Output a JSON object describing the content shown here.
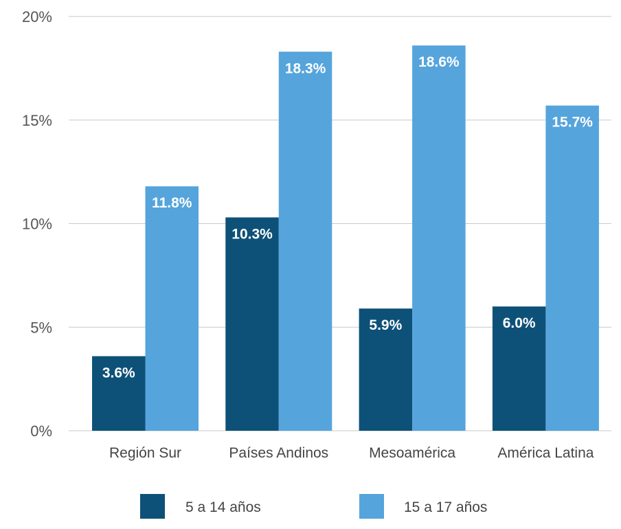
{
  "chart_data": {
    "type": "bar",
    "categories": [
      "Región Sur",
      "Países Andinos",
      "Mesoamérica",
      "América Latina"
    ],
    "series": [
      {
        "name": "5 a 14 años",
        "values": [
          3.6,
          10.3,
          5.9,
          6.0
        ],
        "labels": [
          "3.6%",
          "10.3%",
          "5.9%",
          "6.0%"
        ],
        "color": "#0e5178"
      },
      {
        "name": "15 a 17 años",
        "values": [
          11.8,
          18.3,
          18.6,
          15.7
        ],
        "labels": [
          "11.8%",
          "18.3%",
          "18.6%",
          "15.7%"
        ],
        "color": "#55a4dc"
      }
    ],
    "ylim": [
      0,
      20
    ],
    "yticks": [
      0,
      5,
      10,
      15,
      20
    ],
    "ytick_labels": [
      "0%",
      "5%",
      "10%",
      "15%",
      "20%"
    ],
    "grid": true,
    "legend": "bottom-center"
  }
}
